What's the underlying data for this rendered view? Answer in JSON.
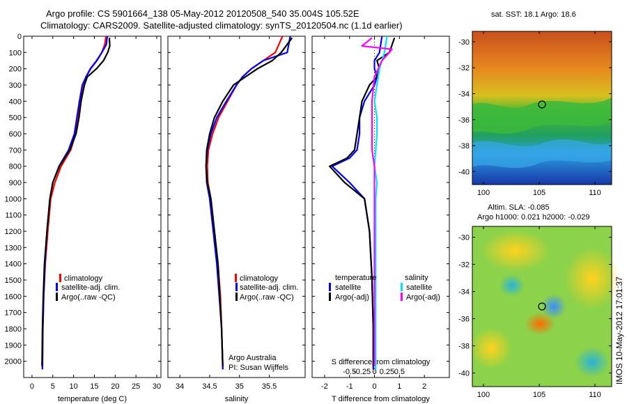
{
  "header": {
    "line1": "Argo profile: CS 5901664_138 05-May-2012 20120508_540 35.004S 105.52E",
    "line2": "Climatology: CARS2009. Satellite-adjusted climatology: synTS_20120504.nc (1.1d earlier)"
  },
  "timestamp": "IMOS 10-May-2012 17:01:37",
  "credit": {
    "line1": "Argo Australia",
    "line2": "PI: Susan Wijffels"
  },
  "map_sst": {
    "title": "sat. SST: 18.1  Argo: 18.6"
  },
  "map_sla": {
    "title1": "Altim. SLA: -0.085",
    "title2": "Argo h1000: 0.021 h2000: -0.029"
  },
  "legend_profiles": [
    "climatology",
    "satellite-adj. clim.",
    "Argo(..raw -QC)"
  ],
  "legend_diff": {
    "temperature_header": "temperature",
    "salinity_header": "salinity",
    "temperature_items": [
      "satellite",
      "Argo(-adj)"
    ],
    "salinity_items": [
      "satellite",
      "Argo(-adj)"
    ]
  },
  "colors": {
    "climatology": "#ff0000",
    "satellite": "#0000ff",
    "argo": "#000000",
    "sal_satellite": "#00e5ff",
    "sal_argo": "#ff00ff"
  },
  "chart_data": [
    {
      "type": "line",
      "xlabel": "temperature (deg C)",
      "xlim": [
        -2,
        31
      ],
      "ylim": [
        2100,
        0
      ],
      "xticks": [
        0,
        5,
        10,
        15,
        20,
        25,
        30
      ],
      "yticks": [
        0,
        100,
        200,
        300,
        400,
        500,
        600,
        700,
        800,
        900,
        1000,
        1100,
        1200,
        1300,
        1400,
        1500,
        1600,
        1700,
        1800,
        1900,
        2000
      ],
      "series": [
        {
          "name": "climatology",
          "color": "#ff0000",
          "x": [
            17.8,
            17.5,
            16.8,
            15.5,
            14.0,
            13.0,
            12.2,
            11.5,
            11.0,
            10.5,
            9.3,
            7.0,
            5.5,
            4.5,
            3.8,
            3.2,
            2.8,
            2.6,
            2.5
          ],
          "y": [
            0,
            50,
            100,
            150,
            200,
            250,
            300,
            400,
            500,
            600,
            700,
            800,
            900,
            1000,
            1200,
            1400,
            1600,
            1800,
            2050
          ]
        },
        {
          "name": "satellite-adj. clim.",
          "color": "#0000ff",
          "x": [
            18.1,
            17.9,
            16.8,
            15.6,
            14.1,
            13.0,
            12.1,
            11.4,
            10.8,
            10.2,
            8.8,
            6.5,
            5.0,
            4.3,
            3.6,
            3.1,
            2.8,
            2.6,
            2.5
          ],
          "y": [
            0,
            50,
            100,
            150,
            200,
            250,
            300,
            400,
            500,
            600,
            700,
            800,
            900,
            1000,
            1200,
            1400,
            1600,
            1800,
            2050
          ]
        },
        {
          "name": "Argo(..raw -QC)",
          "color": "#000000",
          "x": [
            18.6,
            18.7,
            18.2,
            17.2,
            15.5,
            13.3,
            12.6,
            11.8,
            11.3,
            10.6,
            9.1,
            6.6,
            5.0,
            4.3,
            3.6,
            3.0,
            2.7,
            2.5,
            2.4
          ],
          "y": [
            10,
            60,
            100,
            150,
            200,
            250,
            300,
            400,
            500,
            600,
            700,
            800,
            900,
            1000,
            1200,
            1400,
            1600,
            1800,
            2030
          ]
        }
      ]
    },
    {
      "type": "line",
      "xlabel": "salinity",
      "xlim": [
        33.8,
        36.1
      ],
      "ylim": [
        2100,
        0
      ],
      "xticks": [
        34,
        34.5,
        35,
        35.5
      ],
      "series": [
        {
          "name": "climatology",
          "color": "#ff0000",
          "x": [
            35.72,
            35.6,
            35.4,
            35.2,
            35.05,
            34.95,
            34.8,
            34.65,
            34.55,
            34.48,
            34.46,
            34.47,
            34.52,
            34.58,
            34.64,
            34.68,
            34.7,
            34.72
          ],
          "y": [
            0,
            100,
            150,
            200,
            250,
            300,
            400,
            500,
            600,
            700,
            800,
            900,
            1000,
            1200,
            1400,
            1600,
            1800,
            2050
          ]
        },
        {
          "name": "satellite-adj. clim.",
          "color": "#0000ff",
          "x": [
            35.85,
            35.8,
            35.4,
            35.2,
            35.05,
            34.95,
            34.78,
            34.62,
            34.52,
            34.46,
            34.44,
            34.45,
            34.5,
            34.56,
            34.62,
            34.66,
            34.7,
            34.72
          ],
          "y": [
            0,
            100,
            150,
            200,
            250,
            300,
            400,
            500,
            600,
            700,
            800,
            900,
            1000,
            1200,
            1400,
            1600,
            1800,
            2050
          ]
        },
        {
          "name": "Argo(..raw -QC)",
          "color": "#000000",
          "x": [
            35.88,
            35.7,
            35.55,
            35.3,
            35.1,
            34.9,
            34.72,
            34.58,
            34.5,
            34.45,
            34.44,
            34.46,
            34.52,
            34.58,
            34.64,
            34.67,
            34.7,
            34.72
          ],
          "y": [
            10,
            100,
            150,
            200,
            250,
            300,
            400,
            500,
            600,
            700,
            800,
            900,
            1000,
            1200,
            1400,
            1600,
            1800,
            2030
          ]
        }
      ]
    },
    {
      "type": "line",
      "xlabel": "T difference from climatology",
      "xlabel2": "S difference from climatology",
      "xlim": [
        -2.5,
        3
      ],
      "ylim": [
        2100,
        0
      ],
      "xticks": [
        -2,
        -1,
        0,
        1,
        2
      ],
      "xticks_top": [
        "-0.5",
        "-0.25",
        "0",
        "0.25",
        "0.5"
      ],
      "series": [
        {
          "name": "temperature satellite",
          "color": "#0000ff",
          "x": [
            0.3,
            0.2,
            0.0,
            0.0,
            0.1,
            0.0,
            -0.4,
            -0.6,
            -0.6,
            -0.7,
            -1.0,
            -1.7,
            -1.0,
            -0.4,
            -0.2,
            -0.1,
            -0.05,
            -0.05
          ],
          "y": [
            0,
            100,
            150,
            200,
            250,
            300,
            400,
            500,
            600,
            700,
            750,
            800,
            900,
            1000,
            1200,
            1500,
            1800,
            2050
          ]
        },
        {
          "name": "temperature Argo(-adj)",
          "color": "#000000",
          "x": [
            0.8,
            0.6,
            0.1,
            0.2,
            0.1,
            -0.2,
            -0.5,
            -0.6,
            -0.7,
            -0.8,
            -1.1,
            -1.8,
            -1.2,
            -0.4,
            -0.2,
            -0.1,
            -0.05,
            -0.05
          ],
          "y": [
            10,
            100,
            150,
            200,
            250,
            300,
            400,
            500,
            600,
            700,
            750,
            800,
            900,
            1000,
            1200,
            1500,
            1800,
            2030
          ]
        },
        {
          "name": "salinity satellite",
          "color": "#00e5ff",
          "x": [
            0.5,
            0.4,
            0.3,
            0.2,
            0.1,
            0.0,
            0.1,
            0.1,
            0.05,
            0.0,
            0.1,
            0.05,
            0.05,
            0.05,
            0.05,
            0.05
          ],
          "y": [
            0,
            100,
            150,
            200,
            300,
            400,
            500,
            600,
            700,
            800,
            900,
            1000,
            1200,
            1500,
            1800,
            2050
          ]
        },
        {
          "name": "salinity Argo(-adj)",
          "color": "#ff00ff",
          "x": [
            -0.1,
            -0.5,
            0.7,
            0.6,
            0.3,
            0.0,
            -0.1,
            -0.1,
            -0.1,
            -0.1,
            0.0,
            0.0,
            0.0,
            0.0,
            0.0,
            0.0,
            0.0
          ],
          "y": [
            10,
            60,
            80,
            100,
            150,
            250,
            400,
            500,
            600,
            700,
            800,
            900,
            1000,
            1200,
            1500,
            1800,
            2030
          ]
        }
      ]
    }
  ],
  "map_axes": {
    "lat_ticks": [
      "-30",
      "-32",
      "-34",
      "-36",
      "-38",
      "-40"
    ],
    "lon_ticks": [
      "100",
      "105",
      "110"
    ]
  }
}
